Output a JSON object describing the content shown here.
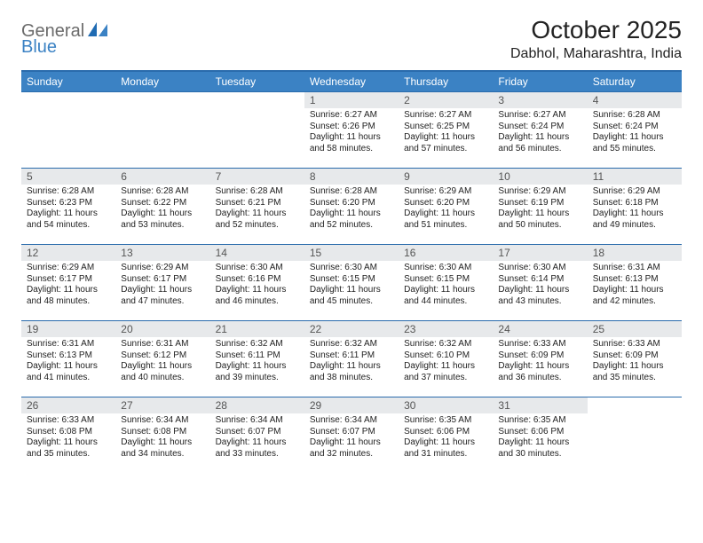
{
  "brand": {
    "part1": "General",
    "part2": "Blue"
  },
  "title": "October 2025",
  "location": "Dabhol, Maharashtra, India",
  "colors": {
    "header_bg": "#3b82c4",
    "header_text": "#ffffff",
    "daynum_bg": "#e7e9eb",
    "rule": "#2a6bac",
    "logo_gray": "#6b6b6b",
    "logo_blue": "#3b82c4",
    "body_text": "#222222",
    "page_bg": "#ffffff"
  },
  "weekdays": [
    "Sunday",
    "Monday",
    "Tuesday",
    "Wednesday",
    "Thursday",
    "Friday",
    "Saturday"
  ],
  "weeks": [
    [
      null,
      null,
      null,
      {
        "n": "1",
        "sunrise": "Sunrise: 6:27 AM",
        "sunset": "Sunset: 6:26 PM",
        "day1": "Daylight: 11 hours",
        "day2": "and 58 minutes."
      },
      {
        "n": "2",
        "sunrise": "Sunrise: 6:27 AM",
        "sunset": "Sunset: 6:25 PM",
        "day1": "Daylight: 11 hours",
        "day2": "and 57 minutes."
      },
      {
        "n": "3",
        "sunrise": "Sunrise: 6:27 AM",
        "sunset": "Sunset: 6:24 PM",
        "day1": "Daylight: 11 hours",
        "day2": "and 56 minutes."
      },
      {
        "n": "4",
        "sunrise": "Sunrise: 6:28 AM",
        "sunset": "Sunset: 6:24 PM",
        "day1": "Daylight: 11 hours",
        "day2": "and 55 minutes."
      }
    ],
    [
      {
        "n": "5",
        "sunrise": "Sunrise: 6:28 AM",
        "sunset": "Sunset: 6:23 PM",
        "day1": "Daylight: 11 hours",
        "day2": "and 54 minutes."
      },
      {
        "n": "6",
        "sunrise": "Sunrise: 6:28 AM",
        "sunset": "Sunset: 6:22 PM",
        "day1": "Daylight: 11 hours",
        "day2": "and 53 minutes."
      },
      {
        "n": "7",
        "sunrise": "Sunrise: 6:28 AM",
        "sunset": "Sunset: 6:21 PM",
        "day1": "Daylight: 11 hours",
        "day2": "and 52 minutes."
      },
      {
        "n": "8",
        "sunrise": "Sunrise: 6:28 AM",
        "sunset": "Sunset: 6:20 PM",
        "day1": "Daylight: 11 hours",
        "day2": "and 52 minutes."
      },
      {
        "n": "9",
        "sunrise": "Sunrise: 6:29 AM",
        "sunset": "Sunset: 6:20 PM",
        "day1": "Daylight: 11 hours",
        "day2": "and 51 minutes."
      },
      {
        "n": "10",
        "sunrise": "Sunrise: 6:29 AM",
        "sunset": "Sunset: 6:19 PM",
        "day1": "Daylight: 11 hours",
        "day2": "and 50 minutes."
      },
      {
        "n": "11",
        "sunrise": "Sunrise: 6:29 AM",
        "sunset": "Sunset: 6:18 PM",
        "day1": "Daylight: 11 hours",
        "day2": "and 49 minutes."
      }
    ],
    [
      {
        "n": "12",
        "sunrise": "Sunrise: 6:29 AM",
        "sunset": "Sunset: 6:17 PM",
        "day1": "Daylight: 11 hours",
        "day2": "and 48 minutes."
      },
      {
        "n": "13",
        "sunrise": "Sunrise: 6:29 AM",
        "sunset": "Sunset: 6:17 PM",
        "day1": "Daylight: 11 hours",
        "day2": "and 47 minutes."
      },
      {
        "n": "14",
        "sunrise": "Sunrise: 6:30 AM",
        "sunset": "Sunset: 6:16 PM",
        "day1": "Daylight: 11 hours",
        "day2": "and 46 minutes."
      },
      {
        "n": "15",
        "sunrise": "Sunrise: 6:30 AM",
        "sunset": "Sunset: 6:15 PM",
        "day1": "Daylight: 11 hours",
        "day2": "and 45 minutes."
      },
      {
        "n": "16",
        "sunrise": "Sunrise: 6:30 AM",
        "sunset": "Sunset: 6:15 PM",
        "day1": "Daylight: 11 hours",
        "day2": "and 44 minutes."
      },
      {
        "n": "17",
        "sunrise": "Sunrise: 6:30 AM",
        "sunset": "Sunset: 6:14 PM",
        "day1": "Daylight: 11 hours",
        "day2": "and 43 minutes."
      },
      {
        "n": "18",
        "sunrise": "Sunrise: 6:31 AM",
        "sunset": "Sunset: 6:13 PM",
        "day1": "Daylight: 11 hours",
        "day2": "and 42 minutes."
      }
    ],
    [
      {
        "n": "19",
        "sunrise": "Sunrise: 6:31 AM",
        "sunset": "Sunset: 6:13 PM",
        "day1": "Daylight: 11 hours",
        "day2": "and 41 minutes."
      },
      {
        "n": "20",
        "sunrise": "Sunrise: 6:31 AM",
        "sunset": "Sunset: 6:12 PM",
        "day1": "Daylight: 11 hours",
        "day2": "and 40 minutes."
      },
      {
        "n": "21",
        "sunrise": "Sunrise: 6:32 AM",
        "sunset": "Sunset: 6:11 PM",
        "day1": "Daylight: 11 hours",
        "day2": "and 39 minutes."
      },
      {
        "n": "22",
        "sunrise": "Sunrise: 6:32 AM",
        "sunset": "Sunset: 6:11 PM",
        "day1": "Daylight: 11 hours",
        "day2": "and 38 minutes."
      },
      {
        "n": "23",
        "sunrise": "Sunrise: 6:32 AM",
        "sunset": "Sunset: 6:10 PM",
        "day1": "Daylight: 11 hours",
        "day2": "and 37 minutes."
      },
      {
        "n": "24",
        "sunrise": "Sunrise: 6:33 AM",
        "sunset": "Sunset: 6:09 PM",
        "day1": "Daylight: 11 hours",
        "day2": "and 36 minutes."
      },
      {
        "n": "25",
        "sunrise": "Sunrise: 6:33 AM",
        "sunset": "Sunset: 6:09 PM",
        "day1": "Daylight: 11 hours",
        "day2": "and 35 minutes."
      }
    ],
    [
      {
        "n": "26",
        "sunrise": "Sunrise: 6:33 AM",
        "sunset": "Sunset: 6:08 PM",
        "day1": "Daylight: 11 hours",
        "day2": "and 35 minutes."
      },
      {
        "n": "27",
        "sunrise": "Sunrise: 6:34 AM",
        "sunset": "Sunset: 6:08 PM",
        "day1": "Daylight: 11 hours",
        "day2": "and 34 minutes."
      },
      {
        "n": "28",
        "sunrise": "Sunrise: 6:34 AM",
        "sunset": "Sunset: 6:07 PM",
        "day1": "Daylight: 11 hours",
        "day2": "and 33 minutes."
      },
      {
        "n": "29",
        "sunrise": "Sunrise: 6:34 AM",
        "sunset": "Sunset: 6:07 PM",
        "day1": "Daylight: 11 hours",
        "day2": "and 32 minutes."
      },
      {
        "n": "30",
        "sunrise": "Sunrise: 6:35 AM",
        "sunset": "Sunset: 6:06 PM",
        "day1": "Daylight: 11 hours",
        "day2": "and 31 minutes."
      },
      {
        "n": "31",
        "sunrise": "Sunrise: 6:35 AM",
        "sunset": "Sunset: 6:06 PM",
        "day1": "Daylight: 11 hours",
        "day2": "and 30 minutes."
      },
      null
    ]
  ]
}
